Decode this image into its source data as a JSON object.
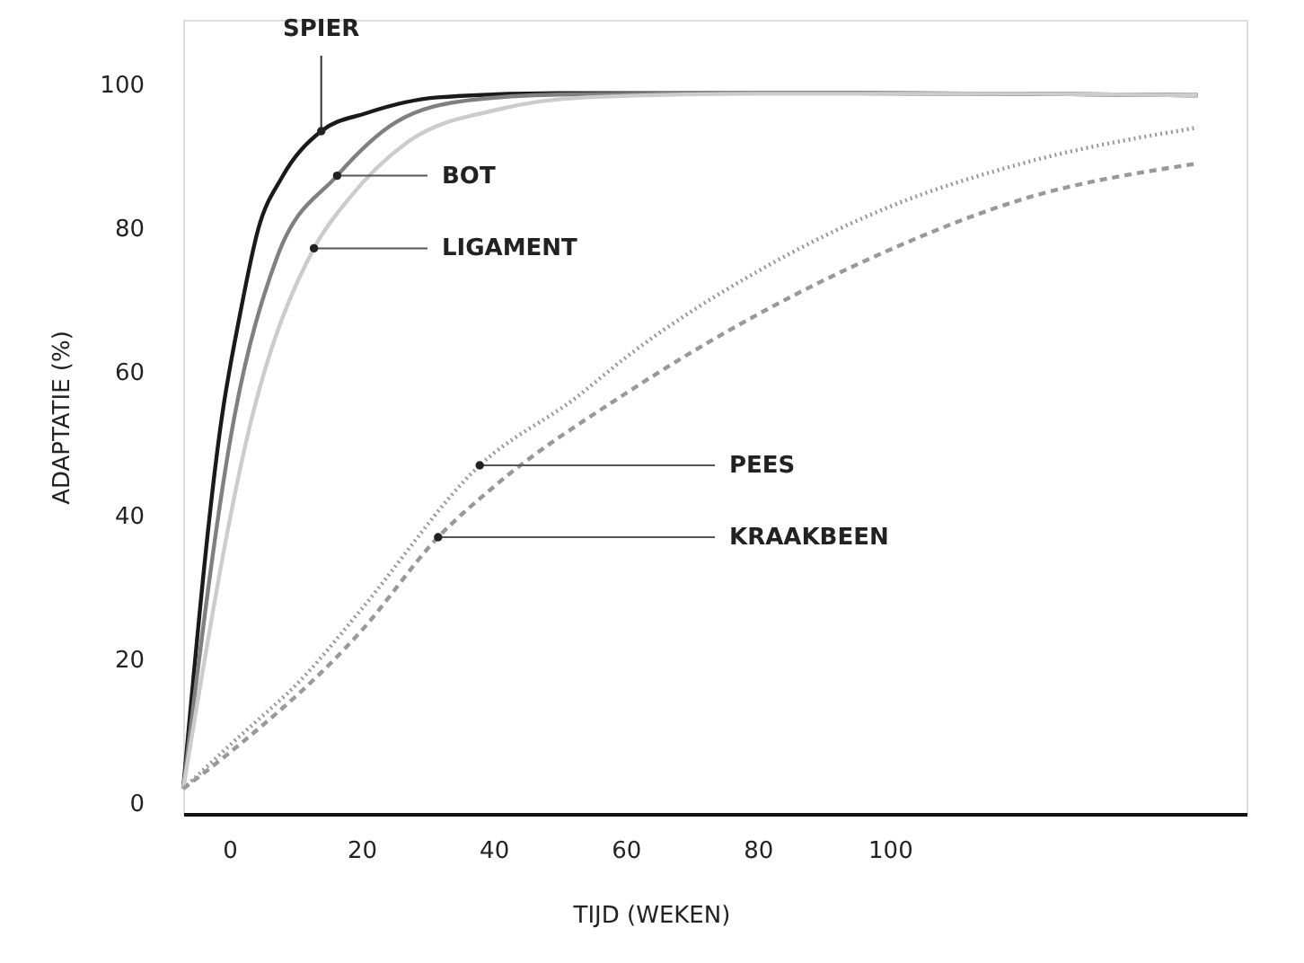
{
  "chart_data": {
    "type": "line",
    "xlabel": "TIJD (WEKEN)",
    "ylabel": "ADAPTATIE (%)",
    "xlim": [
      -7,
      154
    ],
    "ylim": [
      -1.5,
      109
    ],
    "xticks": [
      0,
      20,
      40,
      60,
      80,
      100
    ],
    "yticks": [
      0,
      20,
      40,
      60,
      80,
      100
    ],
    "grid": false,
    "marker": "none",
    "series": [
      {
        "color": "#1a1a1a",
        "line_style": "solid",
        "x": [
          -7,
          -1.1,
          1.6,
          4.4,
          7.9,
          13.9,
          20.7,
          31.6,
          50,
          80,
          120,
          146.6
        ],
        "values": [
          2,
          54,
          68,
          80,
          87,
          93.5,
          96,
          98.2,
          98.8,
          98.8,
          98.7,
          98.5
        ]
      },
      {
        "color": "#808080",
        "line_style": "solid",
        "x": [
          -7,
          0.8,
          7.1,
          16.3,
          25.3,
          36.2,
          50,
          80,
          120,
          146.6
        ],
        "values": [
          2,
          54,
          75.7,
          87.3,
          94.8,
          97.8,
          98.6,
          98.8,
          98.7,
          98.5
        ]
      },
      {
        "color": "#cccccc",
        "line_style": "solid",
        "x": [
          -7,
          3.5,
          12.8,
          18,
          27,
          40.6,
          54,
          80,
          120,
          146.6
        ],
        "values": [
          2,
          54,
          77.2,
          84,
          92,
          96.5,
          98.2,
          98.7,
          98.7,
          98.5
        ]
      },
      {
        "color": "#999999",
        "line_style": "dotted",
        "x": [
          -7,
          0,
          11.7,
          20,
          37.9,
          52.6,
          60,
          80,
          100,
          120,
          146.6
        ],
        "values": [
          2,
          8,
          18,
          27,
          47,
          56.5,
          62,
          74,
          83,
          89,
          94
        ]
      },
      {
        "color": "#999999",
        "line_style": "dashed",
        "x": [
          -7,
          0,
          20,
          31.6,
          40,
          60,
          80,
          100,
          120,
          146.6
        ],
        "values": [
          2,
          7,
          24,
          37,
          44,
          57,
          68,
          77,
          84,
          89
        ]
      }
    ],
    "annotations": [
      {
        "text": "SPIER",
        "x": 13.9,
        "y": 93.5
      },
      {
        "text": "BOT",
        "x": 16.3,
        "y": 87.3
      },
      {
        "text": "LIGAMENT",
        "x": 12.8,
        "y": 77.2
      },
      {
        "text": "PEES",
        "x": 37.9,
        "y": 47
      },
      {
        "text": "KRAAKBEEN",
        "x": 31.6,
        "y": 37
      }
    ]
  }
}
